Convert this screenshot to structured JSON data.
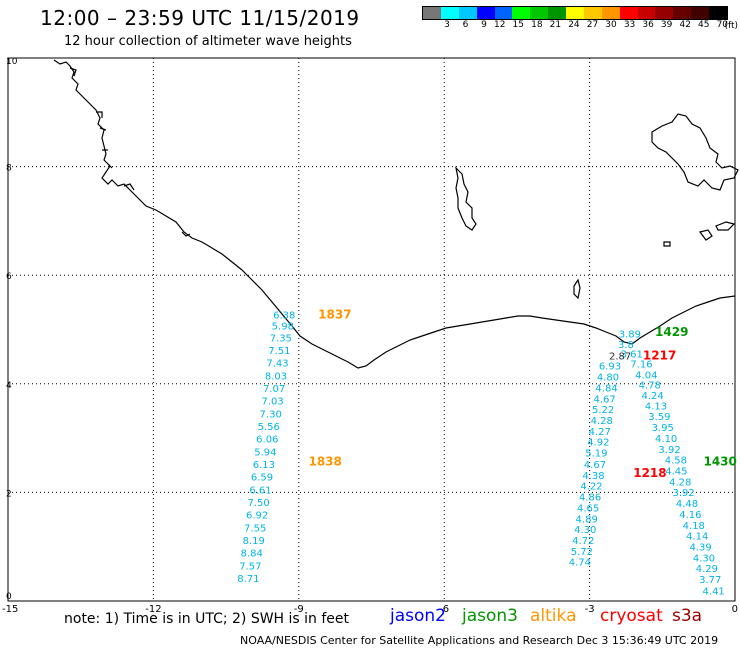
{
  "header": {
    "title": "12:00 – 23:59 UTC 11/15/2019",
    "subtitle": "12 hour collection of altimeter wave heights"
  },
  "legend": {
    "colors": [
      "#777777",
      "#00ffff",
      "#00c8ff",
      "#0000ff",
      "#0064ff",
      "#00ff00",
      "#00c800",
      "#009600",
      "#ffff00",
      "#ffc800",
      "#ff9600",
      "#ff0000",
      "#c80000",
      "#960000",
      "#640000",
      "#400000",
      "#000000"
    ],
    "labels": [
      "3",
      "6",
      "9",
      "12",
      "15",
      "18",
      "21",
      "24",
      "27",
      "30",
      "33",
      "36",
      "39",
      "42",
      "45",
      "70"
    ],
    "unit": "(ft)"
  },
  "axes": {
    "x_ticks": [
      "-15",
      "-12",
      "-9",
      "-6",
      "-3",
      "0"
    ],
    "y_ticks": [
      "0",
      "2",
      "4",
      "6",
      "8",
      "10"
    ]
  },
  "times": [
    {
      "text": "1837",
      "color": "#ff9600",
      "x": -8.6,
      "y": 5.2
    },
    {
      "text": "1838",
      "color": "#ff9600",
      "x": -8.8,
      "y": 2.5
    },
    {
      "text": "1429",
      "color": "#009600",
      "x": -1.65,
      "y": 4.88
    },
    {
      "text": "1217",
      "color": "#ff0000",
      "x": -1.9,
      "y": 4.45
    },
    {
      "text": "1218",
      "color": "#ff0000",
      "x": -2.1,
      "y": 2.28
    },
    {
      "text": "1430",
      "color": "#009600",
      "x": -0.65,
      "y": 2.5
    }
  ],
  "tracks": [
    {
      "color": "#00b4e6",
      "points": [
        {
          "v": "6.38",
          "x": -9.3,
          "y": 5.2
        },
        {
          "v": "5.98",
          "x": -9.33,
          "y": 5.0
        },
        {
          "v": "7.35",
          "x": -9.37,
          "y": 4.78
        },
        {
          "v": "7.51",
          "x": -9.4,
          "y": 4.55
        },
        {
          "v": "7.43",
          "x": -9.44,
          "y": 4.32
        },
        {
          "v": "8.03",
          "x": -9.47,
          "y": 4.08
        },
        {
          "v": "7.07",
          "x": -9.51,
          "y": 3.85
        },
        {
          "v": "7.03",
          "x": -9.54,
          "y": 3.62
        },
        {
          "v": "7.30",
          "x": -9.58,
          "y": 3.38
        },
        {
          "v": "5.56",
          "x": -9.62,
          "y": 3.15
        },
        {
          "v": "6.06",
          "x": -9.65,
          "y": 2.92
        },
        {
          "v": "5.94",
          "x": -9.69,
          "y": 2.68
        },
        {
          "v": "6.13",
          "x": -9.72,
          "y": 2.45
        },
        {
          "v": "6.59",
          "x": -9.76,
          "y": 2.22
        },
        {
          "v": "6.61",
          "x": -9.79,
          "y": 1.98
        },
        {
          "v": "7.50",
          "x": -9.83,
          "y": 1.75
        },
        {
          "v": "6.92",
          "x": -9.86,
          "y": 1.52
        },
        {
          "v": "7.55",
          "x": -9.9,
          "y": 1.28
        },
        {
          "v": "8.19",
          "x": -9.93,
          "y": 1.05
        },
        {
          "v": "8.84",
          "x": -9.97,
          "y": 0.82
        },
        {
          "v": "7.57",
          "x": -10.0,
          "y": 0.58
        },
        {
          "v": "8.71",
          "x": -10.04,
          "y": 0.35
        }
      ]
    },
    {
      "color": "#00b4e6",
      "points": [
        {
          "v": "3.89",
          "x": -2.17,
          "y": 4.85
        },
        {
          "v": "3.8",
          "x": -2.25,
          "y": 4.66
        },
        {
          "v": "3.61",
          "x": -2.13,
          "y": 4.48
        },
        {
          "v": "7.16",
          "x": -1.93,
          "y": 4.3
        },
        {
          "v": "4.04",
          "x": -1.83,
          "y": 4.1
        },
        {
          "v": "4.78",
          "x": -1.76,
          "y": 3.91
        },
        {
          "v": "4.24",
          "x": -1.7,
          "y": 3.72
        },
        {
          "v": "4.13",
          "x": -1.63,
          "y": 3.53
        },
        {
          "v": "3.59",
          "x": -1.56,
          "y": 3.33
        },
        {
          "v": "3.95",
          "x": -1.49,
          "y": 3.13
        },
        {
          "v": "4.10",
          "x": -1.42,
          "y": 2.93
        },
        {
          "v": "3.92",
          "x": -1.35,
          "y": 2.73
        },
        {
          "v": "4.58",
          "x": -1.22,
          "y": 2.53
        },
        {
          "v": "4.45",
          "x": -1.21,
          "y": 2.33
        },
        {
          "v": "4.28",
          "x": -1.13,
          "y": 2.13
        },
        {
          "v": "3.92",
          "x": -1.06,
          "y": 1.93
        },
        {
          "v": "4.48",
          "x": -0.99,
          "y": 1.73
        },
        {
          "v": "4.16",
          "x": -0.92,
          "y": 1.53
        },
        {
          "v": "4.18",
          "x": -0.85,
          "y": 1.33
        },
        {
          "v": "4.14",
          "x": -0.78,
          "y": 1.13
        },
        {
          "v": "4.39",
          "x": -0.71,
          "y": 0.93
        },
        {
          "v": "4.30",
          "x": -0.64,
          "y": 0.73
        },
        {
          "v": "4.29",
          "x": -0.58,
          "y": 0.53
        },
        {
          "v": "3.77",
          "x": -0.51,
          "y": 0.33
        },
        {
          "v": "4.41",
          "x": -0.44,
          "y": 0.12
        }
      ]
    },
    {
      "color": "#00b4e6",
      "points": [
        {
          "v": "6.93",
          "x": -2.58,
          "y": 4.26
        },
        {
          "v": "4.80",
          "x": -2.62,
          "y": 4.06
        },
        {
          "v": "4.84",
          "x": -2.65,
          "y": 3.86
        },
        {
          "v": "4.67",
          "x": -2.69,
          "y": 3.66
        },
        {
          "v": "5.22",
          "x": -2.72,
          "y": 3.46
        },
        {
          "v": "4.28",
          "x": -2.75,
          "y": 3.26
        },
        {
          "v": "4.27",
          "x": -2.79,
          "y": 3.06
        },
        {
          "v": "4.92",
          "x": -2.82,
          "y": 2.86
        },
        {
          "v": "5.19",
          "x": -2.86,
          "y": 2.66
        },
        {
          "v": "4.67",
          "x": -2.89,
          "y": 2.45
        },
        {
          "v": "4.38",
          "x": -2.92,
          "y": 2.25
        },
        {
          "v": "4.22",
          "x": -2.96,
          "y": 2.05
        },
        {
          "v": "4.86",
          "x": -2.99,
          "y": 1.85
        },
        {
          "v": "4.65",
          "x": -3.03,
          "y": 1.65
        },
        {
          "v": "4.89",
          "x": -3.06,
          "y": 1.45
        },
        {
          "v": "4.30",
          "x": -3.09,
          "y": 1.25
        },
        {
          "v": "4.72",
          "x": -3.13,
          "y": 1.05
        },
        {
          "v": "5.72",
          "x": -3.16,
          "y": 0.85
        },
        {
          "v": "4.74",
          "x": -3.2,
          "y": 0.65
        }
      ]
    },
    {
      "color": "#333333",
      "points": [
        {
          "v": "2.87",
          "x": -2.37,
          "y": 4.45
        }
      ]
    }
  ],
  "note": "note:  1) Time is in UTC; 2) SWH is in feet",
  "satellites": [
    {
      "name": "jason2",
      "color": "#0000ff"
    },
    {
      "name": "jason3",
      "color": "#009600"
    },
    {
      "name": "altika",
      "color": "#ff9600"
    },
    {
      "name": "cryosat",
      "color": "#ff0000"
    },
    {
      "name": "s3a",
      "color": "#960000"
    }
  ],
  "footer": "NOAA/NESDIS Center for Satellite Applications and Research   Dec  3 15:36:49 UTC 2019"
}
